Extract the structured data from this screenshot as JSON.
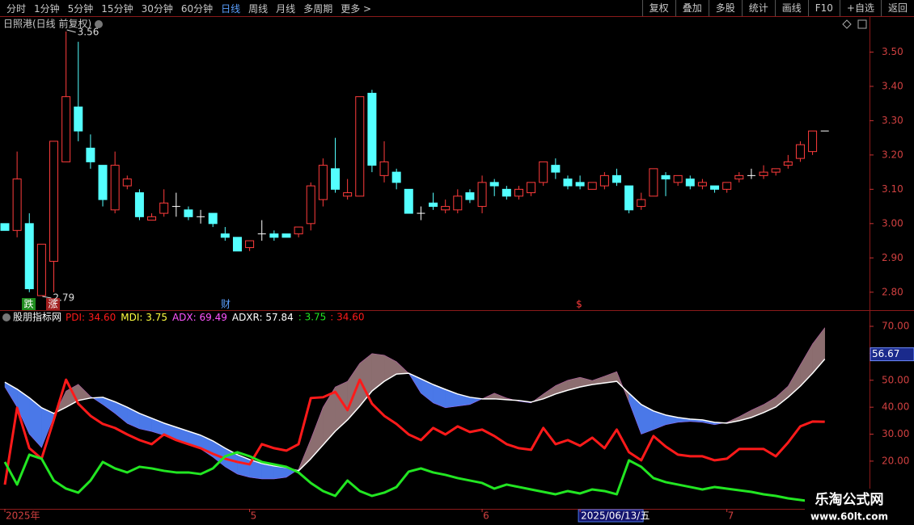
{
  "toolbar": {
    "periods": [
      "分时",
      "1分钟",
      "5分钟",
      "15分钟",
      "30分钟",
      "60分钟",
      "日线",
      "周线",
      "月线",
      "多周期",
      "更多 >"
    ],
    "active": 6,
    "actions": [
      "复权",
      "叠加",
      "多股",
      "统计",
      "画线",
      "F10",
      "+自选",
      "返回"
    ]
  },
  "watermark": {
    "title": "乐淘公式网",
    "url": "www.60lt.com"
  },
  "chart_data": [
    {
      "type": "candlestick",
      "title": "日照港(日线 前复权)",
      "markers": [
        "跌",
        "涨",
        "财",
        "$"
      ],
      "up_color": "#ff3c3c",
      "down_color": "#54ffff",
      "flat_color": "#ffffff",
      "open": [
        3.0,
        2.98,
        3.0,
        2.79,
        2.89,
        3.18,
        3.34,
        3.22,
        3.17,
        3.04,
        3.11,
        3.09,
        3.01,
        3.03,
        3.05,
        3.04,
        3.02,
        3.03,
        2.97,
        2.96,
        2.93,
        2.97,
        2.97,
        2.97,
        2.97,
        3.0,
        3.07,
        3.16,
        3.08,
        3.08,
        3.38,
        3.14,
        3.15,
        3.1,
        3.03,
        3.06,
        3.04,
        3.04,
        3.09,
        3.05,
        3.12,
        3.1,
        3.08,
        3.09,
        3.12,
        3.17,
        3.13,
        3.12,
        3.1,
        3.11,
        3.14,
        3.11,
        3.05,
        3.08,
        3.14,
        3.12,
        3.13,
        3.11,
        3.11,
        3.1,
        3.13,
        3.14,
        3.14,
        3.15,
        3.17,
        3.19,
        3.21,
        3.27
      ],
      "high": [
        3.0,
        3.21,
        3.03,
        2.94,
        3.24,
        3.56,
        3.53,
        3.26,
        3.17,
        3.21,
        3.14,
        3.1,
        3.03,
        3.1,
        3.09,
        3.05,
        3.04,
        3.03,
        2.99,
        2.96,
        2.95,
        3.01,
        2.98,
        2.97,
        2.99,
        3.12,
        3.19,
        3.25,
        3.13,
        3.37,
        3.39,
        3.24,
        3.16,
        3.1,
        3.05,
        3.09,
        3.07,
        3.1,
        3.1,
        3.14,
        3.13,
        3.11,
        3.11,
        3.12,
        3.18,
        3.19,
        3.14,
        3.14,
        3.12,
        3.15,
        3.16,
        3.11,
        3.09,
        3.16,
        3.15,
        3.14,
        3.14,
        3.13,
        3.11,
        3.12,
        3.15,
        3.16,
        3.17,
        3.16,
        3.2,
        3.24,
        3.27,
        3.27
      ],
      "low": [
        2.98,
        2.96,
        2.8,
        2.79,
        2.8,
        3.18,
        3.24,
        3.16,
        3.05,
        3.03,
        3.1,
        3.01,
        3.01,
        3.02,
        3.02,
        3.01,
        3.0,
        2.99,
        2.95,
        2.92,
        2.92,
        2.95,
        2.95,
        2.96,
        2.96,
        2.98,
        3.05,
        3.09,
        3.07,
        3.08,
        3.15,
        3.12,
        3.1,
        3.03,
        3.01,
        3.04,
        3.03,
        3.03,
        3.06,
        3.03,
        3.08,
        3.07,
        3.07,
        3.08,
        3.11,
        3.13,
        3.1,
        3.1,
        3.1,
        3.1,
        3.11,
        3.03,
        3.04,
        3.08,
        3.08,
        3.11,
        3.1,
        3.1,
        3.09,
        3.09,
        3.12,
        3.13,
        3.13,
        3.14,
        3.16,
        3.18,
        3.2,
        3.27
      ],
      "close": [
        2.98,
        3.13,
        2.81,
        2.94,
        3.24,
        3.37,
        3.27,
        3.18,
        3.07,
        3.17,
        3.13,
        3.02,
        3.02,
        3.06,
        3.05,
        3.02,
        3.02,
        3.0,
        2.96,
        2.92,
        2.95,
        2.97,
        2.96,
        2.96,
        2.99,
        3.11,
        3.17,
        3.1,
        3.09,
        3.37,
        3.17,
        3.18,
        3.12,
        3.03,
        3.03,
        3.05,
        3.05,
        3.08,
        3.07,
        3.12,
        3.11,
        3.08,
        3.1,
        3.12,
        3.18,
        3.15,
        3.11,
        3.11,
        3.12,
        3.14,
        3.12,
        3.04,
        3.07,
        3.16,
        3.13,
        3.14,
        3.11,
        3.12,
        3.1,
        3.12,
        3.14,
        3.14,
        3.15,
        3.16,
        3.18,
        3.23,
        3.27,
        3.27
      ],
      "ylim": [
        2.75,
        3.6
      ],
      "yticks": [
        {
          "value": 2.8,
          "label": "2.80"
        },
        {
          "value": 2.9,
          "label": "2.90"
        },
        {
          "value": 3.0,
          "label": "3.00"
        },
        {
          "value": 3.1,
          "label": "3.10"
        },
        {
          "value": 3.2,
          "label": "3.20"
        },
        {
          "value": 3.3,
          "label": "3.30"
        },
        {
          "value": 3.4,
          "label": "3.40"
        },
        {
          "value": 3.5,
          "label": "3.50"
        }
      ]
    },
    {
      "type": "line",
      "title": "股朋指标网",
      "categories": [
        "2025年",
        null,
        null,
        null,
        null,
        null,
        null,
        null,
        null,
        null,
        null,
        null,
        null,
        null,
        null,
        null,
        null,
        null,
        null,
        null,
        "5",
        null,
        null,
        null,
        null,
        null,
        null,
        null,
        null,
        null,
        null,
        null,
        null,
        null,
        null,
        null,
        null,
        null,
        null,
        "6",
        null,
        null,
        null,
        null,
        null,
        null,
        null,
        "2025/06/13/五",
        null,
        null,
        null,
        null,
        null,
        null,
        null,
        null,
        null,
        null,
        null,
        "7",
        null,
        null,
        null,
        null,
        null,
        null,
        null,
        null
      ],
      "selected": 47,
      "current_label": "56.67",
      "fill_up": "#8c6e70",
      "fill_down": "#4a78e8",
      "series": [
        {
          "name": "PDI",
          "last_label": "34.60",
          "color": "#ff1a1a",
          "values": [
            11.3,
            39.8,
            24.8,
            20.9,
            35.3,
            50.2,
            41.3,
            36.8,
            33.8,
            32.3,
            29.9,
            27.8,
            26.3,
            29.9,
            27.8,
            26.3,
            24.8,
            22.7,
            20.9,
            19.7,
            18.8,
            26.3,
            24.8,
            23.9,
            26.3,
            43.4,
            43.7,
            45.7,
            38.9,
            50.2,
            41.3,
            36.8,
            33.8,
            29.9,
            27.8,
            32.3,
            29.9,
            32.9,
            30.8,
            31.7,
            29.3,
            26.3,
            24.8,
            24.2,
            32.3,
            26.3,
            27.8,
            25.7,
            28.7,
            24.8,
            31.7,
            23.3,
            20.3,
            29.3,
            25.4,
            22.4,
            21.8,
            21.8,
            20.3,
            20.9,
            24.5,
            24.5,
            24.5,
            21.8,
            26.9,
            32.9,
            34.7,
            34.6
          ]
        },
        {
          "name": "MDI",
          "last_label": "3.75",
          "color": "#22e622",
          "legend_color": "#ffff40",
          "values": [
            19.7,
            11.3,
            22.4,
            20.9,
            12.8,
            9.8,
            8.3,
            12.8,
            19.7,
            17.3,
            15.8,
            17.9,
            17.3,
            16.4,
            15.8,
            15.8,
            15.2,
            17.3,
            21.8,
            23.3,
            21.8,
            19.7,
            18.8,
            17.9,
            15.8,
            11.9,
            8.9,
            7.1,
            12.8,
            8.9,
            7.1,
            8.3,
            10.4,
            16.1,
            17.3,
            15.8,
            14.9,
            13.7,
            12.8,
            11.9,
            9.8,
            11.3,
            10.4,
            9.5,
            8.6,
            7.7,
            8.9,
            8.0,
            9.5,
            8.9,
            7.7,
            20.3,
            17.9,
            13.7,
            12.2,
            11.3,
            10.4,
            9.5,
            10.4,
            9.8,
            9.2,
            8.6,
            7.7,
            7.1,
            6.2,
            5.6,
            5.0,
            3.75
          ]
        },
        {
          "name": "ADX",
          "last_label": "69.49",
          "color": "#ff55ff",
          "values": [
            47.5,
            40,
            30,
            25,
            36.5,
            46,
            48.5,
            44,
            41,
            37.7,
            34,
            32,
            31,
            29.6,
            28.1,
            26.6,
            24.5,
            21.5,
            17.9,
            15.2,
            14,
            13.4,
            13.4,
            14,
            17,
            28.1,
            40,
            47.5,
            49.6,
            56.3,
            59.9,
            59.3,
            56.9,
            52.6,
            45.2,
            41.6,
            39.8,
            40.4,
            41,
            43.1,
            45.2,
            43.4,
            42.2,
            41.6,
            44.9,
            48,
            50,
            51.1,
            49.9,
            51.5,
            53.2,
            42,
            30,
            31.7,
            33.5,
            34.4,
            34.7,
            34.4,
            33.5,
            34.4,
            36.5,
            38.9,
            41,
            43.7,
            47.8,
            55.7,
            63.5,
            69.49
          ]
        },
        {
          "name": "ADXR",
          "last_label": "57.84",
          "color": "#ffffff",
          "values": [
            49.3,
            46.7,
            43.5,
            39.8,
            37.7,
            40,
            42.5,
            43.4,
            43.7,
            42,
            40,
            37.7,
            35.9,
            34.1,
            32.6,
            31.1,
            29.6,
            27.5,
            24.8,
            22.4,
            20.6,
            19.1,
            18.2,
            17.6,
            16.4,
            20.9,
            26,
            31.1,
            35.3,
            40.4,
            46,
            49.6,
            52.3,
            52.6,
            50.5,
            48.4,
            46.6,
            44.9,
            43.7,
            43.1,
            43.1,
            42.8,
            42.5,
            41.9,
            43.1,
            44.9,
            46.3,
            47.5,
            48.4,
            49,
            49.6,
            45.2,
            41,
            38.6,
            37.1,
            36.2,
            35.6,
            35.3,
            34.4,
            34.1,
            35.0,
            36.2,
            38,
            40.1,
            43.7,
            47.8,
            52.6,
            57.84
          ]
        }
      ],
      "extra_labels": [
        {
          "label": ": 3.75",
          "color": "#22e622"
        },
        {
          "label": ": 34.60",
          "color": "#ff1a1a"
        }
      ],
      "ylim": [
        2.3,
        75.4
      ],
      "yticks": [
        {
          "value": 20,
          "label": "20.00"
        },
        {
          "value": 30,
          "label": "30.00"
        },
        {
          "value": 40,
          "label": "40.00"
        },
        {
          "value": 50,
          "label": "50.00"
        },
        {
          "value": 60,
          "label": "60.00"
        },
        {
          "value": 70,
          "label": "70.00"
        }
      ]
    }
  ]
}
